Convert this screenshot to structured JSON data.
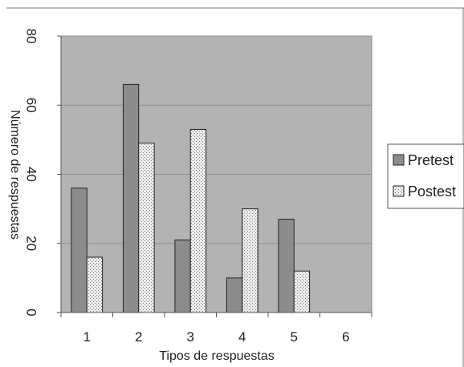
{
  "chart_data": {
    "type": "bar",
    "title": "",
    "xlabel": "Tipos de respuestas",
    "ylabel": "Número de respuestas",
    "categories": [
      "1",
      "2",
      "3",
      "4",
      "5",
      "6"
    ],
    "series": [
      {
        "name": "Pretest",
        "values": [
          36,
          66,
          21,
          10,
          27,
          null
        ],
        "color": "#8c8c8c",
        "pattern": "solid"
      },
      {
        "name": "Postest",
        "values": [
          16,
          49,
          53,
          30,
          12,
          null
        ],
        "color": "#e6e6e6",
        "pattern": "dotted"
      }
    ],
    "ylim": [
      0,
      80
    ],
    "yticks": [
      "0",
      "20",
      "40",
      "60",
      "80"
    ],
    "grid": true,
    "legend_position": "right",
    "plot_background": "#b3b3b3",
    "gridline_color": "#8f8f8f"
  }
}
